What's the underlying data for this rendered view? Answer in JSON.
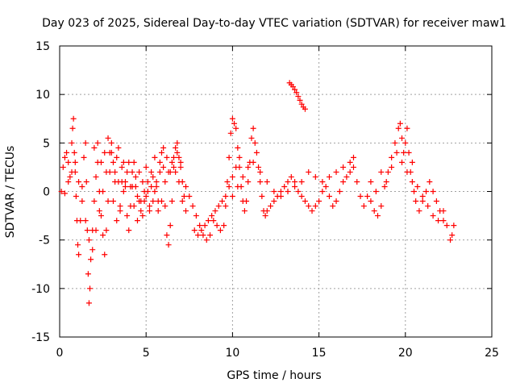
{
  "chart_data": {
    "type": "scatter",
    "title": "Day 023 of 2025, Sidereal Day-to-day VTEC variation (SDTVAR) for receiver maw1",
    "xlabel": "GPS time / hours",
    "ylabel": "SDTVAR / TECUs",
    "xlim": [
      0,
      25
    ],
    "ylim": [
      -15,
      15
    ],
    "xticks": [
      0,
      5,
      10,
      15,
      20,
      25
    ],
    "yticks": [
      -15,
      -10,
      -5,
      0,
      5,
      10,
      15
    ],
    "grid": true,
    "marker": "+",
    "color": "#ff0000",
    "series": [
      {
        "name": "SDTVAR",
        "points": [
          [
            0.1,
            0.0
          ],
          [
            0.2,
            2.5
          ],
          [
            0.3,
            3.5
          ],
          [
            0.4,
            4.0
          ],
          [
            0.5,
            3.0
          ],
          [
            0.6,
            1.5
          ],
          [
            0.7,
            5.0
          ],
          [
            0.75,
            6.5
          ],
          [
            0.8,
            7.5
          ],
          [
            0.85,
            4.0
          ],
          [
            0.9,
            2.0
          ],
          [
            0.95,
            -0.5
          ],
          [
            1.0,
            -3.0
          ],
          [
            1.05,
            -5.5
          ],
          [
            1.1,
            -6.5
          ],
          [
            1.2,
            -3.0
          ],
          [
            1.3,
            0.5
          ],
          [
            1.4,
            3.5
          ],
          [
            1.5,
            5.0
          ],
          [
            1.55,
            1.0
          ],
          [
            1.6,
            -4.0
          ],
          [
            1.65,
            -8.5
          ],
          [
            1.7,
            -11.5
          ],
          [
            1.75,
            -10.0
          ],
          [
            1.8,
            -7.0
          ],
          [
            1.9,
            -4.0
          ],
          [
            2.0,
            -1.0
          ],
          [
            2.1,
            1.5
          ],
          [
            2.2,
            3.0
          ],
          [
            2.3,
            0.0
          ],
          [
            2.4,
            -2.5
          ],
          [
            2.5,
            -4.5
          ],
          [
            2.6,
            -6.5
          ],
          [
            2.7,
            -4.0
          ],
          [
            2.8,
            -1.0
          ],
          [
            2.9,
            2.0
          ],
          [
            3.0,
            5.0
          ],
          [
            3.1,
            3.0
          ],
          [
            3.2,
            1.0
          ],
          [
            3.3,
            3.5
          ],
          [
            3.4,
            1.0
          ],
          [
            3.5,
            -1.5
          ],
          [
            3.6,
            1.0
          ],
          [
            3.7,
            3.0
          ],
          [
            3.8,
            0.5
          ],
          [
            3.9,
            -2.5
          ],
          [
            4.0,
            -4.0
          ],
          [
            4.1,
            -1.5
          ],
          [
            4.2,
            0.5
          ],
          [
            4.3,
            3.0
          ],
          [
            4.4,
            1.5
          ],
          [
            4.5,
            -0.5
          ],
          [
            4.6,
            2.0
          ],
          [
            4.7,
            -1.0
          ],
          [
            4.8,
            -2.5
          ],
          [
            4.9,
            0.0
          ],
          [
            5.0,
            2.5
          ],
          [
            5.1,
            1.0
          ],
          [
            5.2,
            -1.5
          ],
          [
            5.3,
            0.5
          ],
          [
            5.4,
            1.5
          ],
          [
            5.5,
            3.5
          ],
          [
            5.6,
            1.0
          ],
          [
            5.7,
            -1.0
          ],
          [
            5.8,
            2.0
          ],
          [
            5.9,
            4.0
          ],
          [
            6.0,
            2.5
          ],
          [
            6.1,
            -1.5
          ],
          [
            6.2,
            -4.5
          ],
          [
            6.3,
            -5.5
          ],
          [
            6.4,
            -3.5
          ],
          [
            6.5,
            -1.0
          ],
          [
            6.6,
            2.5
          ],
          [
            6.7,
            4.5
          ],
          [
            6.8,
            5.0
          ],
          [
            6.9,
            3.5
          ],
          [
            7.0,
            2.5
          ],
          [
            7.1,
            1.0
          ],
          [
            7.2,
            -0.5
          ],
          [
            7.3,
            0.5
          ],
          [
            7.5,
            -0.5
          ],
          [
            7.7,
            -1.5
          ],
          [
            7.9,
            -2.5
          ],
          [
            8.1,
            -3.5
          ],
          [
            8.3,
            -4.5
          ],
          [
            8.5,
            -5.0
          ],
          [
            8.7,
            -4.5
          ],
          [
            8.9,
            -3.0
          ],
          [
            9.1,
            -3.5
          ],
          [
            9.3,
            -4.0
          ],
          [
            9.5,
            -3.5
          ],
          [
            9.6,
            -1.5
          ],
          [
            9.7,
            1.0
          ],
          [
            9.8,
            3.5
          ],
          [
            9.9,
            6.0
          ],
          [
            10.0,
            7.5
          ],
          [
            10.1,
            7.0
          ],
          [
            10.2,
            6.5
          ],
          [
            10.3,
            4.5
          ],
          [
            10.4,
            2.5
          ],
          [
            10.5,
            0.5
          ],
          [
            10.6,
            -1.0
          ],
          [
            10.7,
            -2.0
          ],
          [
            10.8,
            -1.0
          ],
          [
            10.9,
            1.0
          ],
          [
            11.0,
            3.0
          ],
          [
            11.1,
            5.5
          ],
          [
            11.2,
            6.5
          ],
          [
            11.3,
            5.0
          ],
          [
            11.4,
            4.0
          ],
          [
            11.5,
            2.5
          ],
          [
            11.6,
            1.0
          ],
          [
            11.7,
            -0.5
          ],
          [
            11.8,
            -2.0
          ],
          [
            11.9,
            -2.5
          ],
          [
            12.0,
            -2.0
          ],
          [
            12.2,
            -1.5
          ],
          [
            12.4,
            -1.0
          ],
          [
            12.6,
            -0.5
          ],
          [
            12.8,
            0.0
          ],
          [
            13.0,
            0.5
          ],
          [
            13.2,
            1.0
          ],
          [
            13.4,
            1.5
          ],
          [
            13.6,
            1.0
          ],
          [
            13.8,
            0.0
          ],
          [
            14.0,
            -0.5
          ],
          [
            14.2,
            -1.0
          ],
          [
            14.4,
            -1.5
          ],
          [
            14.6,
            -2.0
          ],
          [
            14.8,
            -1.5
          ],
          [
            15.0,
            -1.0
          ],
          [
            15.2,
            0.0
          ],
          [
            15.4,
            0.5
          ],
          [
            15.6,
            -0.5
          ],
          [
            15.8,
            -1.5
          ],
          [
            16.0,
            -1.0
          ],
          [
            16.2,
            0.0
          ],
          [
            16.4,
            1.0
          ],
          [
            16.6,
            1.5
          ],
          [
            16.8,
            2.0
          ],
          [
            17.0,
            2.5
          ],
          [
            17.2,
            1.0
          ],
          [
            17.4,
            -0.5
          ],
          [
            17.6,
            -1.5
          ],
          [
            10.0,
            -0.5
          ],
          [
            10.3,
            0.5
          ],
          [
            10.6,
            1.5
          ],
          [
            10.9,
            2.5
          ],
          [
            11.2,
            3.0
          ],
          [
            11.6,
            2.0
          ],
          [
            12.0,
            1.0
          ],
          [
            12.4,
            0.0
          ],
          [
            12.8,
            -0.5
          ],
          [
            13.2,
            0.0
          ],
          [
            13.6,
            0.5
          ],
          [
            14.0,
            1.0
          ],
          [
            14.4,
            2.0
          ],
          [
            14.8,
            1.5
          ],
          [
            15.2,
            1.0
          ],
          [
            15.6,
            1.5
          ],
          [
            16.0,
            2.0
          ],
          [
            16.4,
            2.5
          ],
          [
            16.8,
            3.0
          ],
          [
            17.0,
            3.5
          ],
          [
            7.8,
            -4.0
          ],
          [
            8.0,
            -4.5
          ],
          [
            8.2,
            -4.0
          ],
          [
            8.4,
            -3.5
          ],
          [
            8.6,
            -3.0
          ],
          [
            8.8,
            -2.5
          ],
          [
            9.0,
            -2.0
          ],
          [
            9.2,
            -1.5
          ],
          [
            9.4,
            -1.0
          ],
          [
            9.6,
            -0.5
          ],
          [
            9.8,
            0.5
          ],
          [
            10.0,
            1.5
          ],
          [
            10.2,
            2.5
          ],
          [
            10.4,
            3.5
          ],
          [
            13.3,
            11.2
          ],
          [
            13.4,
            11.0
          ],
          [
            13.5,
            10.8
          ],
          [
            13.6,
            10.5
          ],
          [
            13.7,
            10.2
          ],
          [
            13.8,
            9.8
          ],
          [
            13.9,
            9.4
          ],
          [
            14.0,
            9.0
          ],
          [
            14.1,
            8.7
          ],
          [
            14.2,
            8.5
          ],
          [
            17.8,
            -0.5
          ],
          [
            18.0,
            -1.0
          ],
          [
            18.2,
            -2.0
          ],
          [
            18.4,
            -2.5
          ],
          [
            18.6,
            -1.5
          ],
          [
            18.8,
            0.5
          ],
          [
            19.0,
            2.0
          ],
          [
            19.2,
            3.5
          ],
          [
            19.4,
            5.0
          ],
          [
            19.6,
            6.5
          ],
          [
            19.7,
            7.0
          ],
          [
            19.8,
            5.5
          ],
          [
            19.9,
            4.0
          ],
          [
            20.0,
            5.0
          ],
          [
            20.1,
            6.5
          ],
          [
            20.2,
            4.0
          ],
          [
            20.3,
            2.0
          ],
          [
            20.4,
            1.0
          ],
          [
            20.5,
            0.0
          ],
          [
            20.6,
            -1.0
          ],
          [
            20.8,
            -2.0
          ],
          [
            21.0,
            -1.0
          ],
          [
            21.2,
            0.0
          ],
          [
            21.4,
            1.0
          ],
          [
            21.6,
            0.0
          ],
          [
            21.8,
            -1.0
          ],
          [
            22.0,
            -2.0
          ],
          [
            22.2,
            -3.0
          ],
          [
            22.4,
            -3.5
          ],
          [
            22.6,
            -5.0
          ],
          [
            22.7,
            -4.5
          ],
          [
            22.8,
            -3.5
          ],
          [
            18.0,
            1.0
          ],
          [
            18.3,
            0.0
          ],
          [
            18.6,
            2.0
          ],
          [
            18.9,
            1.0
          ],
          [
            19.2,
            2.5
          ],
          [
            19.5,
            4.0
          ],
          [
            19.8,
            3.0
          ],
          [
            20.1,
            2.0
          ],
          [
            20.4,
            3.0
          ],
          [
            20.7,
            0.5
          ],
          [
            21.0,
            -0.5
          ],
          [
            21.3,
            -1.5
          ],
          [
            21.6,
            -2.5
          ],
          [
            21.9,
            -3.0
          ],
          [
            22.2,
            -2.0
          ],
          [
            0.3,
            -0.2
          ],
          [
            0.5,
            1.0
          ],
          [
            0.7,
            2.0
          ],
          [
            0.9,
            3.0
          ],
          [
            1.1,
            1.0
          ],
          [
            1.3,
            -1.0
          ],
          [
            1.5,
            -3.0
          ],
          [
            1.7,
            -5.0
          ],
          [
            1.9,
            -6.0
          ],
          [
            2.1,
            -4.0
          ],
          [
            2.3,
            -2.0
          ],
          [
            2.5,
            0.0
          ],
          [
            2.7,
            2.0
          ],
          [
            2.9,
            4.0
          ],
          [
            3.1,
            -1.0
          ],
          [
            3.3,
            -3.0
          ],
          [
            3.5,
            -2.0
          ],
          [
            3.7,
            0.0
          ],
          [
            3.9,
            2.0
          ],
          [
            4.1,
            0.5
          ],
          [
            4.3,
            -1.5
          ],
          [
            4.5,
            -3.0
          ],
          [
            4.7,
            -2.0
          ],
          [
            4.9,
            -1.0
          ],
          [
            5.1,
            0.0
          ],
          [
            5.3,
            2.0
          ],
          [
            5.5,
            0.0
          ],
          [
            5.7,
            -2.0
          ],
          [
            5.9,
            -1.0
          ],
          [
            6.1,
            1.0
          ],
          [
            6.3,
            2.0
          ],
          [
            6.5,
            3.0
          ],
          [
            6.7,
            2.0
          ],
          [
            6.9,
            1.0
          ],
          [
            7.1,
            -1.0
          ],
          [
            7.3,
            -2.0
          ],
          [
            2.0,
            4.5
          ],
          [
            2.2,
            5.0
          ],
          [
            2.4,
            3.0
          ],
          [
            2.6,
            4.0
          ],
          [
            2.8,
            5.5
          ],
          [
            3.0,
            4.0
          ],
          [
            3.2,
            2.0
          ],
          [
            3.4,
            4.5
          ],
          [
            3.6,
            2.5
          ],
          [
            3.8,
            1.0
          ],
          [
            4.0,
            3.0
          ],
          [
            4.2,
            2.0
          ],
          [
            4.4,
            0.5
          ],
          [
            4.6,
            -1.0
          ],
          [
            4.8,
            1.0
          ],
          [
            5.0,
            -0.5
          ],
          [
            5.2,
            -2.0
          ],
          [
            5.4,
            -1.0
          ],
          [
            5.6,
            0.5
          ],
          [
            5.8,
            3.0
          ],
          [
            6.0,
            4.5
          ],
          [
            6.2,
            3.5
          ],
          [
            6.4,
            2.0
          ],
          [
            6.6,
            3.5
          ],
          [
            6.8,
            4.0
          ],
          [
            7.0,
            3.0
          ]
        ]
      }
    ]
  }
}
